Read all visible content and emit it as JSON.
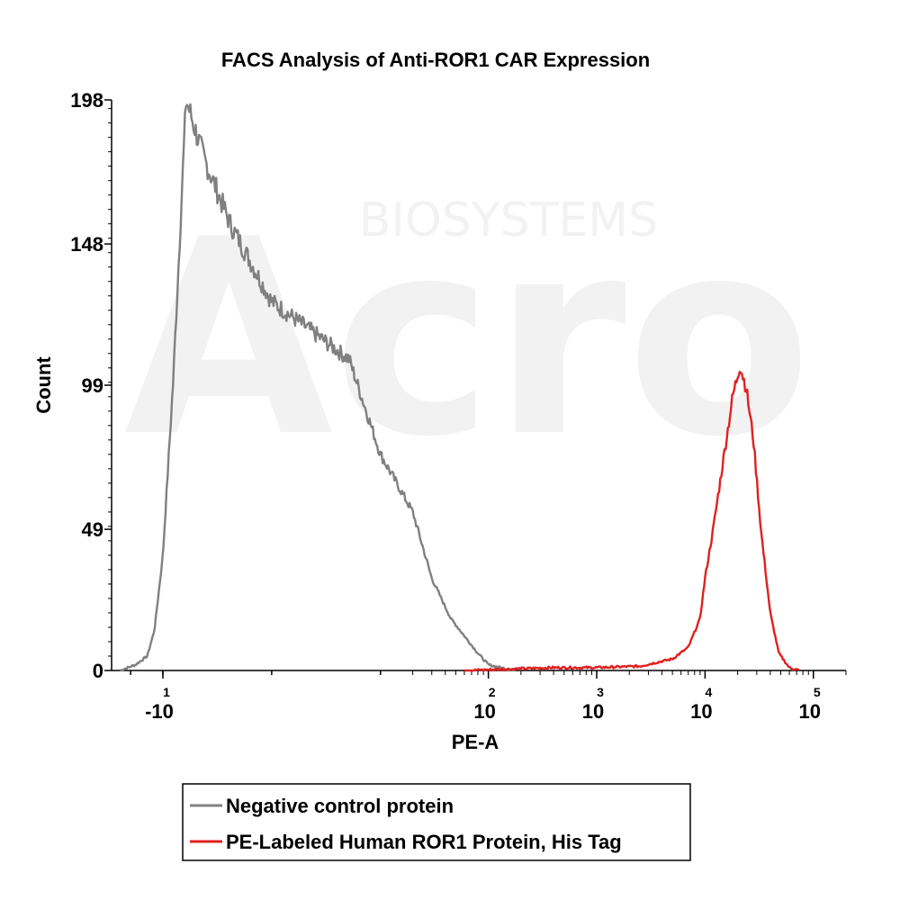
{
  "watermark": {
    "brand": "Acro",
    "tagline": "BIOSYSTEMS"
  },
  "chart_data": {
    "type": "area",
    "title": "FACS Analysis of Anti-ROR1 CAR Expression",
    "xlabel": "PE-A",
    "ylabel": "Count",
    "x_scale": "biexponential",
    "xlim": [
      -30,
      200000
    ],
    "ylim": [
      0,
      198
    ],
    "y_ticks": [
      0,
      49,
      99,
      148,
      198
    ],
    "x_ticks": [
      {
        "value": -10,
        "base": "-10",
        "exp": "1"
      },
      {
        "value": 100,
        "base": "10",
        "exp": "2"
      },
      {
        "value": 1000,
        "base": "10",
        "exp": "3"
      },
      {
        "value": 10000,
        "base": "10",
        "exp": "4"
      },
      {
        "value": 100000,
        "base": "10",
        "exp": "5"
      }
    ],
    "grid": false,
    "legend_position": "bottom",
    "series": [
      {
        "name": "Negative control protein",
        "color": "#808080",
        "x": [
          -25,
          -18,
          -14,
          -12,
          -10,
          -8,
          -6,
          -4,
          -2,
          0,
          5,
          10,
          20,
          30,
          45,
          60,
          80,
          100,
          130,
          180
        ],
        "y": [
          0,
          2,
          5,
          14,
          40,
          100,
          198,
          178,
          155,
          128,
          108,
          75,
          55,
          32,
          18,
          12,
          6,
          2,
          1,
          0
        ]
      },
      {
        "name": "PE-Labeled Human ROR1 Protein, His Tag",
        "color": "#e02020",
        "x": [
          60,
          150,
          400,
          1000,
          2500,
          5000,
          7000,
          9000,
          10000,
          12000,
          15000,
          18000,
          21000,
          24000,
          28000,
          33000,
          40000,
          48000,
          60000,
          75000
        ],
        "y": [
          0,
          0.5,
          1,
          1,
          1.5,
          4,
          8,
          18,
          32,
          50,
          75,
          95,
          106,
          98,
          80,
          48,
          20,
          6,
          1,
          0
        ]
      }
    ]
  }
}
